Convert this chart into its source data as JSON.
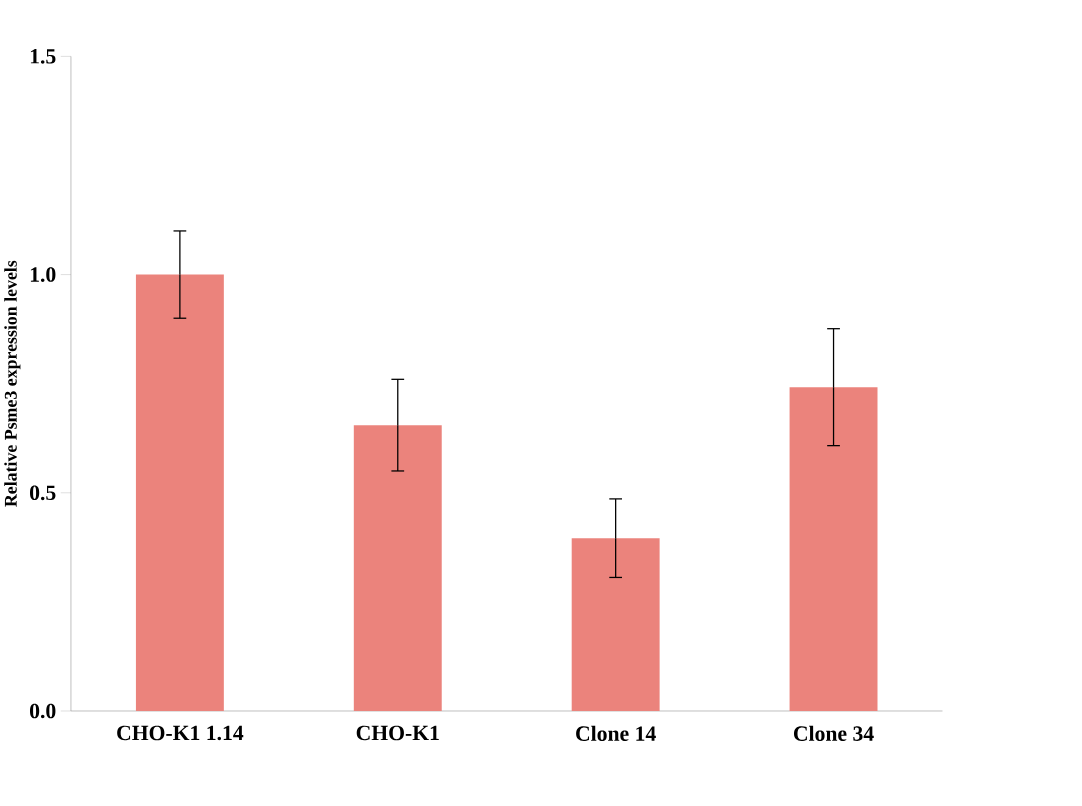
{
  "chart_data": {
    "type": "bar",
    "ylabel": "Relative Psme3 expression levels",
    "categories": [
      "CHO-K1 1.14",
      "CHO-K1",
      "Clone 14",
      "Clone 34"
    ],
    "values": [
      1.0,
      0.655,
      0.396,
      0.742
    ],
    "errors": [
      0.1,
      0.105,
      0.09,
      0.134
    ],
    "color": "#eb837c",
    "ylim": [
      0,
      1.5
    ],
    "yticks": [
      {
        "value": 0,
        "label": "0.0"
      },
      {
        "value": 0.5,
        "label": "0.5"
      },
      {
        "value": 1.0,
        "label": "1.0"
      },
      {
        "value": 1.5,
        "label": "1.5"
      }
    ]
  }
}
